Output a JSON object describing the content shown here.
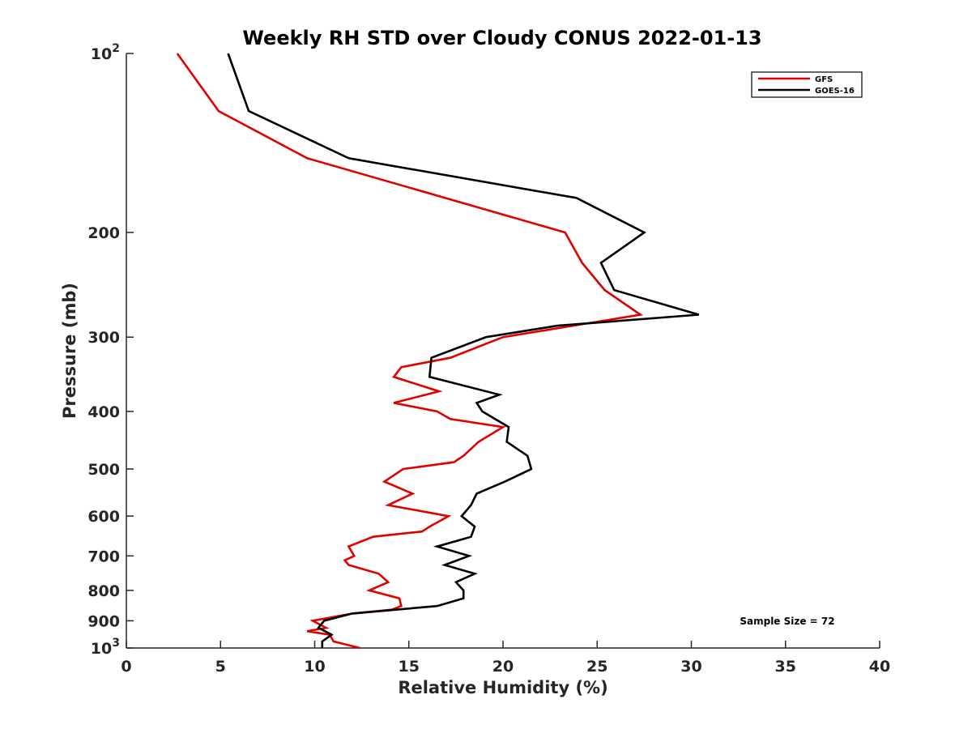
{
  "chart_data": {
    "type": "line",
    "title": "Weekly RH STD over Cloudy CONUS 2022-01-13",
    "xlabel": "Relative Humidity (%)",
    "ylabel": "Pressure (mb)",
    "xlim": [
      0,
      40
    ],
    "ylim": [
      100,
      1000
    ],
    "y_scale": "log",
    "y_reversed": true,
    "grid": false,
    "legend_position": "top-right",
    "x_ticks": [
      0,
      5,
      10,
      15,
      20,
      25,
      30,
      35,
      40
    ],
    "x_tick_labels": [
      "0",
      "5",
      "10",
      "15",
      "20",
      "25",
      "30",
      "35",
      "40"
    ],
    "y_ticks": [
      100,
      200,
      300,
      400,
      500,
      600,
      700,
      800,
      900,
      1000
    ],
    "y_tick_labels": [
      {
        "base": "10",
        "exp": "2"
      },
      {
        "base": "200",
        "exp": ""
      },
      {
        "base": "300",
        "exp": ""
      },
      {
        "base": "400",
        "exp": ""
      },
      {
        "base": "500",
        "exp": ""
      },
      {
        "base": "600",
        "exp": ""
      },
      {
        "base": "700",
        "exp": ""
      },
      {
        "base": "800",
        "exp": ""
      },
      {
        "base": "900",
        "exp": ""
      },
      {
        "base": "10",
        "exp": "3"
      }
    ],
    "annotation": "Sample Size = 72",
    "series": [
      {
        "name": "GFS",
        "color": "#e00000",
        "points": [
          [
            2.7,
            100
          ],
          [
            4.9,
            125
          ],
          [
            9.6,
            150
          ],
          [
            23.3,
            200
          ],
          [
            24.2,
            225
          ],
          [
            25.4,
            250
          ],
          [
            27.3,
            275
          ],
          [
            20.0,
            300
          ],
          [
            17.2,
            325
          ],
          [
            14.6,
            337
          ],
          [
            14.2,
            350
          ],
          [
            16.6,
            370
          ],
          [
            14.2,
            387
          ],
          [
            16.5,
            400
          ],
          [
            17.2,
            412
          ],
          [
            20.0,
            425
          ],
          [
            18.7,
            450
          ],
          [
            17.9,
            475
          ],
          [
            17.4,
            487
          ],
          [
            14.7,
            500
          ],
          [
            13.7,
            525
          ],
          [
            15.2,
            550
          ],
          [
            13.9,
            575
          ],
          [
            17.1,
            600
          ],
          [
            16.1,
            625
          ],
          [
            15.7,
            637
          ],
          [
            13.1,
            650
          ],
          [
            11.8,
            675
          ],
          [
            12.1,
            700
          ],
          [
            11.6,
            712
          ],
          [
            11.8,
            725
          ],
          [
            13.4,
            750
          ],
          [
            13.9,
            775
          ],
          [
            12.9,
            800
          ],
          [
            14.5,
            825
          ],
          [
            14.6,
            850
          ],
          [
            14.1,
            862
          ],
          [
            12.0,
            875
          ],
          [
            9.9,
            900
          ],
          [
            10.6,
            925
          ],
          [
            9.6,
            937
          ],
          [
            10.8,
            950
          ],
          [
            11.0,
            975
          ],
          [
            12.4,
            1000
          ]
        ]
      },
      {
        "name": "GOES-16",
        "color": "#000000",
        "points": [
          [
            5.4,
            100
          ],
          [
            6.5,
            125
          ],
          [
            11.8,
            150
          ],
          [
            23.9,
            175
          ],
          [
            27.5,
            200
          ],
          [
            25.2,
            225
          ],
          [
            25.9,
            250
          ],
          [
            30.4,
            275
          ],
          [
            22.9,
            287
          ],
          [
            19.1,
            300
          ],
          [
            16.2,
            325
          ],
          [
            16.1,
            350
          ],
          [
            19.8,
            375
          ],
          [
            18.6,
            387
          ],
          [
            18.9,
            400
          ],
          [
            20.3,
            425
          ],
          [
            20.2,
            450
          ],
          [
            21.3,
            475
          ],
          [
            21.5,
            500
          ],
          [
            20.1,
            525
          ],
          [
            18.6,
            550
          ],
          [
            18.3,
            575
          ],
          [
            17.8,
            600
          ],
          [
            18.5,
            625
          ],
          [
            18.3,
            650
          ],
          [
            16.5,
            675
          ],
          [
            18.2,
            700
          ],
          [
            16.9,
            725
          ],
          [
            18.5,
            750
          ],
          [
            17.5,
            775
          ],
          [
            17.9,
            800
          ],
          [
            17.9,
            825
          ],
          [
            16.5,
            850
          ],
          [
            12.0,
            875
          ],
          [
            10.5,
            900
          ],
          [
            10.2,
            925
          ],
          [
            10.9,
            950
          ],
          [
            10.4,
            975
          ],
          [
            10.4,
            1000
          ]
        ]
      }
    ]
  }
}
